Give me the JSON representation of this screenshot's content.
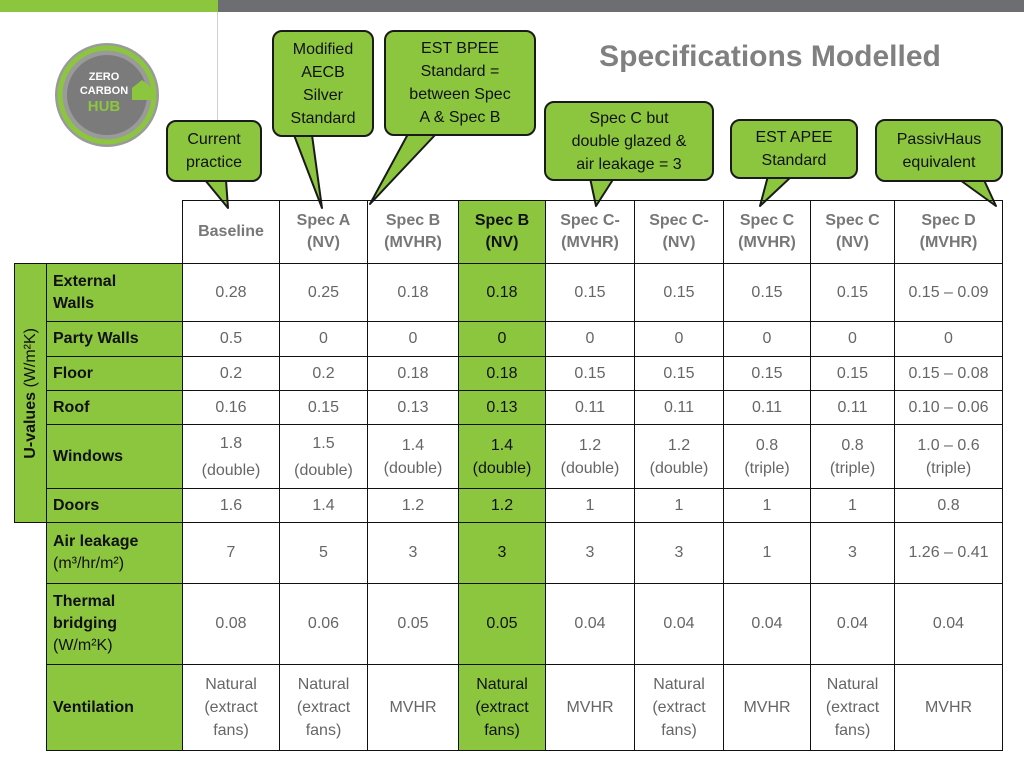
{
  "logo": {
    "line1": "ZERO",
    "line2": "CARBON",
    "line3": "HUB"
  },
  "title": "Specifications Modelled",
  "callouts": [
    {
      "id": "current",
      "text": [
        "Current",
        "practice"
      ]
    },
    {
      "id": "aecb",
      "text": [
        "Modified",
        "AECB",
        "Silver",
        "Standard"
      ]
    },
    {
      "id": "bpee",
      "text": [
        "EST BPEE",
        "Standard =",
        "between Spec",
        "A & Spec B"
      ]
    },
    {
      "id": "specc",
      "text": [
        "Spec C but",
        "double glazed &",
        "air leakage = 3"
      ]
    },
    {
      "id": "apee",
      "text": [
        "EST APEE",
        "Standard"
      ]
    },
    {
      "id": "passiv",
      "text": [
        "PassivHaus",
        "equivalent"
      ]
    }
  ],
  "table": {
    "group_label": "U-values",
    "group_unit": "(W/m²K)",
    "columns": [
      [
        "Baseline"
      ],
      [
        "Spec A",
        "(NV)"
      ],
      [
        "Spec B",
        "(MVHR)"
      ],
      [
        "Spec B",
        "(NV)"
      ],
      [
        "Spec C-",
        "(MVHR)"
      ],
      [
        "Spec C-",
        "(NV)"
      ],
      [
        "Spec C",
        "(MVHR)"
      ],
      [
        "Spec C",
        "(NV)"
      ],
      [
        "Spec D",
        "(MVHR)"
      ]
    ],
    "rows": [
      {
        "label": [
          "External",
          "Walls"
        ],
        "unit": "",
        "values": [
          "0.28",
          "0.25",
          "0.18",
          "0.18",
          "0.15",
          "0.15",
          "0.15",
          "0.15",
          "0.15 – 0.09"
        ]
      },
      {
        "label": [
          "Party Walls"
        ],
        "unit": "",
        "values": [
          "0.5",
          "0",
          "0",
          "0",
          "0",
          "0",
          "0",
          "0",
          "0"
        ]
      },
      {
        "label": [
          "Floor"
        ],
        "unit": "",
        "values": [
          "0.2",
          "0.2",
          "0.18",
          "0.18",
          "0.15",
          "0.15",
          "0.15",
          "0.15",
          "0.15 – 0.08"
        ]
      },
      {
        "label": [
          "Roof"
        ],
        "unit": "",
        "values": [
          "0.16",
          "0.15",
          "0.13",
          "0.13",
          "0.11",
          "0.11",
          "0.11",
          "0.11",
          "0.10 – 0.06"
        ]
      },
      {
        "label": [
          "Windows"
        ],
        "unit": "",
        "values": [
          [
            "1.8",
            "(double)"
          ],
          [
            "1.5",
            "(double)"
          ],
          [
            "1.4",
            "(double)"
          ],
          [
            "1.4",
            "(double)"
          ],
          [
            "1.2",
            "(double)"
          ],
          [
            "1.2",
            "(double)"
          ],
          [
            "0.8",
            "(triple)"
          ],
          [
            "0.8",
            "(triple)"
          ],
          [
            "1.0 – 0.6",
            "(triple)"
          ]
        ]
      },
      {
        "label": [
          "Doors"
        ],
        "unit": "",
        "values": [
          "1.6",
          "1.4",
          "1.2",
          "1.2",
          "1",
          "1",
          "1",
          "1",
          "0.8"
        ]
      },
      {
        "label": [
          "Air leakage"
        ],
        "unit": "(m³/hr/m²)",
        "values": [
          "7",
          "5",
          "3",
          "3",
          "3",
          "3",
          "1",
          "3",
          "1.26 – 0.41"
        ]
      },
      {
        "label": [
          "Thermal",
          "bridging"
        ],
        "unit": "(W/m²K)",
        "values": [
          "0.08",
          "0.06",
          "0.05",
          "0.05",
          "0.04",
          "0.04",
          "0.04",
          "0.04",
          "0.04"
        ]
      },
      {
        "label": [
          "Ventilation"
        ],
        "unit": "",
        "values": [
          [
            "Natural",
            "(extract",
            "fans)"
          ],
          [
            "Natural",
            "(extract",
            "fans)"
          ],
          [
            "MVHR"
          ],
          [
            "Natural",
            "(extract",
            "fans)"
          ],
          [
            "MVHR"
          ],
          [
            "Natural",
            "(extract",
            "fans)"
          ],
          [
            "MVHR"
          ],
          [
            "Natural",
            "(extract",
            "fans)"
          ],
          [
            "MVHR"
          ]
        ]
      }
    ],
    "highlight_column": 3,
    "accent_color": "#8cc63f"
  }
}
